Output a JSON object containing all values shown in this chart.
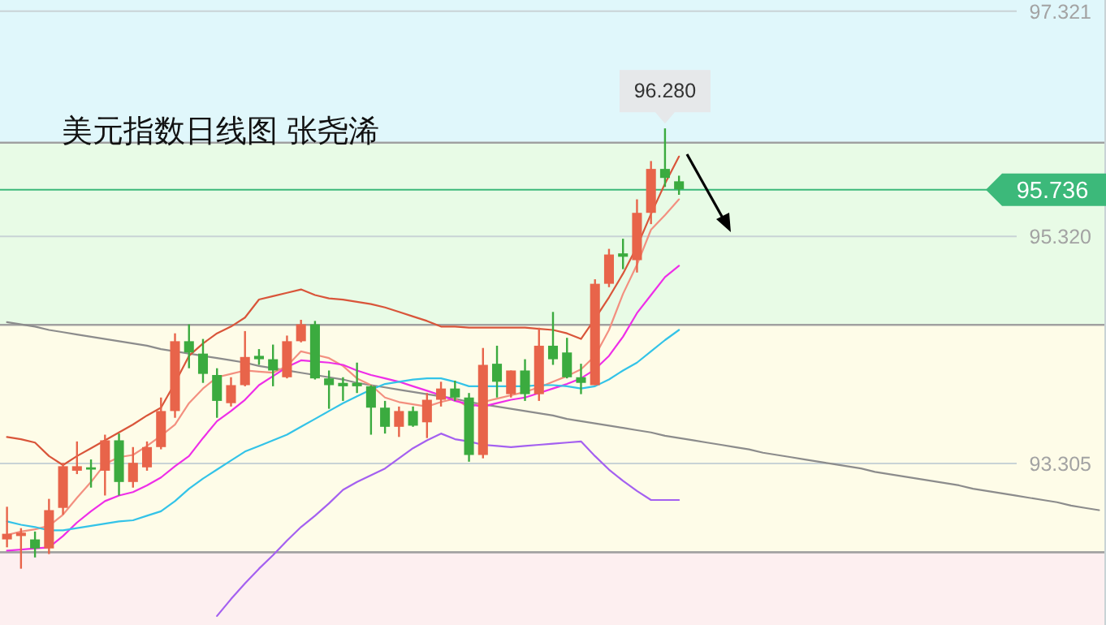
{
  "chart_data": {
    "type": "candlestick",
    "title": "美元指数日线图 张尧浠",
    "categories": [
      null,
      null,
      null,
      null,
      null,
      null,
      null,
      null,
      null,
      null,
      null,
      null,
      null,
      null,
      null,
      null,
      null,
      null,
      null,
      null,
      null,
      null,
      null,
      null,
      null,
      null,
      null,
      null,
      null,
      null,
      null,
      null,
      null,
      null,
      null,
      null,
      null,
      null,
      null,
      null,
      null,
      null,
      null,
      null,
      null,
      null,
      null,
      null,
      null,
      null,
      null,
      null,
      null,
      null,
      null,
      null,
      null,
      null,
      null,
      null,
      null,
      null,
      null,
      null,
      null,
      null,
      null,
      null,
      null,
      null,
      null,
      null,
      null,
      null,
      null,
      null,
      null,
      null,
      null
    ],
    "ohlc": [
      [
        92.63,
        92.92,
        92.56,
        92.68
      ],
      [
        92.66,
        92.73,
        92.37,
        92.69
      ],
      [
        92.63,
        92.7,
        92.47,
        92.55
      ],
      [
        92.55,
        92.99,
        92.5,
        92.89
      ],
      [
        92.91,
        93.31,
        92.85,
        93.28
      ],
      [
        93.24,
        93.5,
        93.21,
        93.28
      ],
      [
        93.27,
        93.34,
        93.09,
        93.25
      ],
      [
        93.24,
        93.56,
        93.02,
        93.51
      ],
      [
        93.51,
        93.57,
        93.02,
        93.14
      ],
      [
        93.14,
        93.45,
        93.09,
        93.31
      ],
      [
        93.27,
        93.5,
        93.24,
        93.45
      ],
      [
        93.45,
        93.89,
        93.43,
        93.77
      ],
      [
        93.77,
        94.46,
        93.71,
        94.39
      ],
      [
        94.39,
        94.54,
        94.15,
        94.29
      ],
      [
        94.28,
        94.41,
        94.02,
        94.1
      ],
      [
        94.09,
        94.15,
        93.71,
        93.86
      ],
      [
        93.84,
        94.07,
        93.81,
        94.0
      ],
      [
        94.0,
        94.48,
        93.99,
        94.25
      ],
      [
        94.26,
        94.32,
        94.18,
        94.23
      ],
      [
        94.23,
        94.36,
        93.99,
        94.13
      ],
      [
        94.07,
        94.44,
        94.06,
        94.39
      ],
      [
        94.39,
        94.58,
        94.38,
        94.54
      ],
      [
        94.54,
        94.57,
        94.05,
        94.06
      ],
      [
        94.06,
        94.13,
        93.79,
        94.0
      ],
      [
        94.02,
        94.07,
        93.86,
        93.99
      ],
      [
        94.02,
        94.2,
        93.93,
        93.99
      ],
      [
        93.99,
        94.0,
        93.56,
        93.8
      ],
      [
        93.8,
        93.86,
        93.57,
        93.63
      ],
      [
        93.63,
        93.81,
        93.54,
        93.77
      ],
      [
        93.77,
        93.81,
        93.63,
        93.64
      ],
      [
        93.67,
        93.93,
        93.53,
        93.87
      ],
      [
        93.87,
        94.03,
        93.81,
        93.97
      ],
      [
        93.97,
        94.04,
        93.86,
        93.89
      ],
      [
        93.89,
        93.93,
        93.32,
        93.38
      ],
      [
        93.38,
        94.33,
        93.35,
        94.18
      ],
      [
        94.19,
        94.35,
        93.89,
        94.03
      ],
      [
        93.92,
        94.13,
        93.89,
        94.13
      ],
      [
        94.13,
        94.23,
        93.86,
        93.92
      ],
      [
        93.92,
        94.51,
        93.86,
        94.35
      ],
      [
        94.35,
        94.65,
        94.18,
        94.23
      ],
      [
        94.29,
        94.42,
        94.06,
        94.07
      ],
      [
        94.07,
        94.19,
        93.92,
        94.02
      ],
      [
        94.0,
        94.94,
        94.0,
        94.9
      ],
      [
        94.9,
        95.21,
        94.87,
        95.16
      ],
      [
        95.17,
        95.3,
        95.03,
        95.14
      ],
      [
        95.11,
        95.65,
        95.0,
        95.53
      ],
      [
        95.53,
        95.99,
        95.43,
        95.92
      ],
      [
        95.92,
        96.28,
        95.76,
        95.84
      ],
      [
        95.81,
        95.86,
        95.69,
        95.74
      ],
      null,
      null,
      null,
      null,
      null,
      null,
      null,
      null,
      null,
      null,
      null,
      null,
      null,
      null,
      null,
      null,
      null,
      null,
      null,
      null,
      null,
      null,
      null,
      null,
      null,
      null,
      null,
      null,
      null,
      null
    ],
    "colors": [
      "#e8644a",
      "#e8644a",
      "#3bab3f",
      "#e8644a",
      "#e8644a",
      "#e8644a",
      "#3bab3f",
      "#e8644a",
      "#3bab3f",
      "#e8644a",
      "#e8644a",
      "#e8644a",
      "#e8644a",
      "#3bab3f",
      "#3bab3f",
      "#3bab3f",
      "#e8644a",
      "#e8644a",
      "#3bab3f",
      "#3bab3f",
      "#e8644a",
      "#e8644a",
      "#3bab3f",
      "#3bab3f",
      "#3bab3f",
      "#3bab3f",
      "#3bab3f",
      "#3bab3f",
      "#e8644a",
      "#3bab3f",
      "#e8644a",
      "#e8644a",
      "#3bab3f",
      "#3bab3f",
      "#e8644a",
      "#3bab3f",
      "#e8644a",
      "#3bab3f",
      "#e8644a",
      "#3bab3f",
      "#3bab3f",
      "#3bab3f",
      "#e8644a",
      "#e8644a",
      "#3bab3f",
      "#e8644a",
      "#e8644a",
      "#3bab3f",
      "#3bab3f",
      null,
      null,
      null,
      null,
      null,
      null,
      null,
      null,
      null,
      null,
      null,
      null,
      null,
      null,
      null,
      null,
      null,
      null,
      null,
      null,
      null,
      null,
      null,
      null,
      null,
      null,
      null,
      null,
      null,
      null
    ],
    "series": [
      {
        "type": "line",
        "color": "#8c8c8c",
        "values": [
          94.56,
          94.54,
          94.52,
          94.49,
          94.47,
          94.45,
          94.43,
          94.41,
          94.39,
          94.37,
          94.35,
          94.32,
          94.3,
          94.28,
          94.26,
          94.24,
          94.22,
          94.2,
          94.17,
          94.15,
          94.13,
          94.11,
          94.09,
          94.07,
          94.05,
          94.02,
          94.0,
          93.98,
          93.96,
          93.94,
          93.92,
          93.9,
          93.88,
          93.85,
          93.83,
          93.81,
          93.79,
          93.77,
          93.75,
          93.73,
          93.7,
          93.68,
          93.66,
          93.64,
          93.62,
          93.6,
          93.58,
          93.55,
          93.53,
          93.51,
          93.49,
          93.47,
          93.45,
          93.43,
          93.4,
          93.38,
          93.36,
          93.34,
          93.32,
          93.3,
          93.28,
          93.26,
          93.23,
          93.21,
          93.19,
          93.17,
          93.15,
          93.13,
          93.11,
          93.08,
          93.06,
          93.04,
          93.02,
          93.0,
          92.98,
          92.96,
          92.93,
          92.91,
          92.89
        ]
      },
      {
        "type": "line",
        "color": "#d9553a",
        "values": [
          93.54,
          93.52,
          93.49,
          93.37,
          93.29,
          93.37,
          93.44,
          93.51,
          93.58,
          93.65,
          93.73,
          93.8,
          94.02,
          94.26,
          94.37,
          94.46,
          94.52,
          94.6,
          94.76,
          94.79,
          94.82,
          94.85,
          94.8,
          94.77,
          94.76,
          94.74,
          94.72,
          94.69,
          94.65,
          94.61,
          94.57,
          94.52,
          94.52,
          94.51,
          94.51,
          94.51,
          94.51,
          94.51,
          94.5,
          94.49,
          94.46,
          94.41,
          94.59,
          94.78,
          94.99,
          95.23,
          95.52,
          95.79,
          96.03,
          null,
          null,
          null,
          null,
          null,
          null,
          null,
          null,
          null,
          null,
          null,
          null,
          null,
          null,
          null,
          null,
          null,
          null,
          null,
          null,
          null,
          null,
          null,
          null,
          null,
          null,
          null,
          null,
          null,
          null
        ]
      },
      {
        "type": "line",
        "color": "#f39080",
        "values": [
          92.67,
          92.7,
          92.72,
          92.75,
          92.85,
          93.0,
          93.14,
          93.3,
          93.36,
          93.38,
          93.46,
          93.55,
          93.65,
          93.84,
          93.97,
          94.07,
          94.1,
          94.13,
          94.12,
          94.11,
          94.17,
          94.3,
          94.27,
          94.24,
          94.17,
          94.06,
          94.0,
          93.89,
          93.85,
          93.83,
          93.81,
          93.85,
          93.88,
          93.8,
          93.85,
          93.88,
          93.91,
          93.94,
          93.98,
          94.03,
          94.08,
          94.14,
          94.26,
          94.49,
          94.81,
          95.07,
          95.38,
          95.51,
          95.65,
          null,
          null,
          null,
          null,
          null,
          null,
          null,
          null,
          null,
          null,
          null,
          null,
          null,
          null,
          null,
          null,
          null,
          null,
          null,
          null,
          null,
          null,
          null,
          null,
          null,
          null,
          null,
          null,
          null,
          null
        ]
      },
      {
        "type": "line",
        "color": "#ee2ee8",
        "values": [
          92.53,
          92.54,
          92.55,
          92.56,
          92.66,
          92.78,
          92.88,
          92.97,
          93.02,
          93.05,
          93.11,
          93.18,
          93.28,
          93.37,
          93.53,
          93.68,
          93.77,
          93.87,
          94.0,
          94.08,
          94.16,
          94.22,
          94.21,
          94.2,
          94.18,
          94.13,
          94.09,
          94.06,
          94.03,
          93.99,
          93.95,
          93.91,
          93.86,
          93.83,
          93.81,
          93.84,
          93.87,
          93.89,
          93.93,
          93.97,
          94.01,
          94.06,
          94.14,
          94.26,
          94.43,
          94.64,
          94.8,
          94.96,
          95.06,
          null,
          null,
          null,
          null,
          null,
          null,
          null,
          null,
          null,
          null,
          null,
          null,
          null,
          null,
          null,
          null,
          null,
          null,
          null,
          null,
          null,
          null,
          null,
          null,
          null,
          null,
          null,
          null,
          null,
          null
        ]
      },
      {
        "type": "line",
        "color": "#33c3e8",
        "values": [
          92.79,
          92.76,
          92.74,
          92.71,
          92.71,
          92.73,
          92.75,
          92.77,
          92.79,
          92.8,
          92.84,
          92.88,
          92.97,
          93.08,
          93.17,
          93.25,
          93.33,
          93.41,
          93.46,
          93.51,
          93.56,
          93.63,
          93.7,
          93.77,
          93.84,
          93.9,
          93.96,
          94.01,
          94.03,
          94.05,
          94.06,
          94.06,
          94.03,
          93.99,
          93.99,
          93.99,
          93.99,
          93.99,
          94.0,
          94.0,
          93.99,
          93.97,
          93.99,
          94.05,
          94.13,
          94.2,
          94.3,
          94.4,
          94.49,
          null,
          null,
          null,
          null,
          null,
          null,
          null,
          null,
          null,
          null,
          null,
          null,
          null,
          null,
          null,
          null,
          null,
          null,
          null,
          null,
          null,
          null,
          null,
          null,
          null,
          null,
          null,
          null,
          null,
          null
        ]
      },
      {
        "type": "line",
        "color": "#a460f0",
        "values": [
          null,
          null,
          null,
          null,
          null,
          null,
          null,
          null,
          null,
          null,
          null,
          null,
          null,
          null,
          null,
          91.95,
          92.1,
          92.24,
          92.37,
          92.49,
          92.62,
          92.74,
          92.84,
          92.95,
          93.07,
          93.14,
          93.2,
          93.26,
          93.35,
          93.44,
          93.51,
          93.57,
          93.52,
          93.5,
          93.47,
          93.46,
          93.45,
          93.46,
          93.47,
          93.48,
          93.49,
          93.5,
          93.37,
          93.25,
          93.15,
          93.06,
          92.98,
          92.98,
          92.98,
          null,
          null,
          null,
          null,
          null,
          null,
          null,
          null,
          null,
          null,
          null,
          null,
          null,
          null,
          null,
          null,
          null,
          null,
          null,
          null,
          null,
          null,
          null,
          null,
          null,
          null,
          null,
          null,
          null,
          null
        ]
      }
    ],
    "ylim": [
      91.87,
      97.42
    ],
    "yticks": [
      97.321,
      {
        "value": 95.32,
        "label": "95.320"
      },
      93.305
    ],
    "grid": "y",
    "tick_labels": "y",
    "bands": [
      {
        "axis": "y",
        "from": 96.152,
        "to": 97.42,
        "color": "#e0f7fb"
      },
      {
        "axis": "y",
        "from": 94.536,
        "to": 96.152,
        "color": "#e8fbe6"
      },
      {
        "axis": "y",
        "from": 92.516,
        "to": 94.536,
        "color": "#fefce8"
      },
      {
        "axis": "y",
        "from": 91.87,
        "to": 92.516,
        "color": "#fdeff0"
      }
    ],
    "ref_lines": [
      {
        "axis": "y",
        "value": 95.736,
        "label": "95.736",
        "color": "#3cb97a"
      }
    ],
    "annotations": [
      {
        "text": "96.280",
        "y": 96.28
      }
    ]
  }
}
